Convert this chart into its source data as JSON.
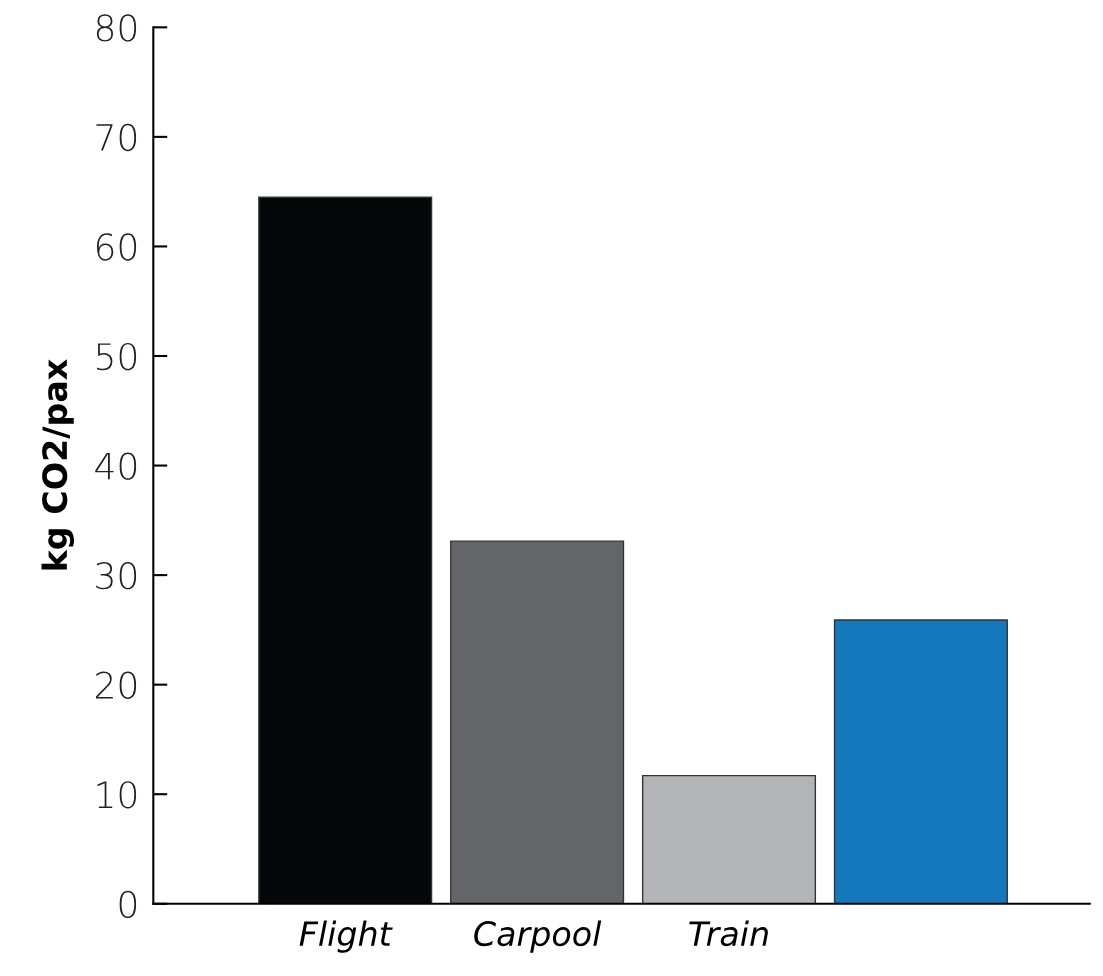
{
  "chart_data": {
    "type": "bar",
    "ylabel": "kg CO2/pax",
    "categories": [
      "Flight",
      "Carpool",
      "Train",
      null
    ],
    "values": [
      64.5,
      33.1,
      11.7,
      25.9
    ],
    "colors": [
      "#050809",
      "#646567",
      "#b3b4b6",
      "#1578bd"
    ],
    "ylim": [
      0,
      80
    ],
    "yticks": [
      0,
      10,
      20,
      30,
      40,
      50,
      60,
      70,
      80
    ],
    "grid": false,
    "legend": false
  }
}
